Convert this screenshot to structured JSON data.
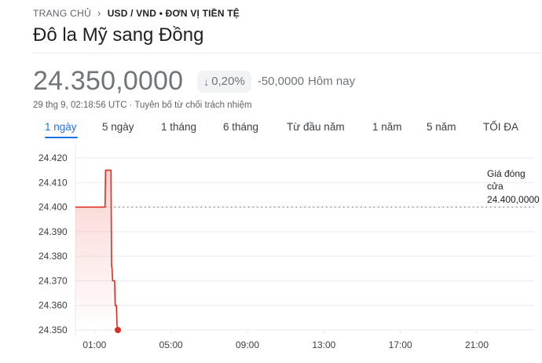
{
  "breadcrumb": {
    "home": "TRANG CHỦ",
    "separator": "›",
    "current": "USD / VND • ĐƠN VỊ TIỀN TỆ"
  },
  "title": "Đô la Mỹ sang Đồng",
  "quote": {
    "price": "24.350,0000",
    "change_arrow": "↓",
    "change_percent": "0,20%",
    "change_abs": "-50,0000",
    "change_period": "Hôm nay",
    "timestamp": "29 thg 9, 02:18:56 UTC",
    "separator": "·",
    "disclaimer": "Tuyên bố từ chối trách nhiệm"
  },
  "tabs": [
    {
      "label": "1 ngày",
      "active": true
    },
    {
      "label": "5 ngày",
      "active": false
    },
    {
      "label": "1 tháng",
      "active": false
    },
    {
      "label": "6 tháng",
      "active": false
    },
    {
      "label": "Từ đầu năm",
      "active": false
    },
    {
      "label": "1 năm",
      "active": false
    },
    {
      "label": "5 năm",
      "active": false
    },
    {
      "label": "TỐI ĐA",
      "active": false
    }
  ],
  "chart_data": {
    "type": "area",
    "y_ticks": [
      "24.420",
      "24.410",
      "24.400",
      "24.390",
      "24.380",
      "24.370",
      "24.360",
      "24.350"
    ],
    "ylim": [
      24350,
      24420
    ],
    "x_ticks": [
      "01:00",
      "05:00",
      "09:00",
      "13:00",
      "17:00",
      "21:00"
    ],
    "x_tick_hours": [
      1,
      5,
      9,
      13,
      17,
      21
    ],
    "xlim_hours": [
      0,
      24
    ],
    "previous_close": {
      "label_lines": [
        "Giá đóng",
        "cửa"
      ],
      "value_label": "24.400,0000",
      "value": 24400
    },
    "series": [
      {
        "x_hours": [
          0,
          1.55,
          1.58,
          1.86,
          1.89,
          1.92,
          1.95,
          2.05,
          2.08,
          2.14,
          2.18,
          2.22
        ],
        "values": [
          24400,
          24400,
          24415,
          24415,
          24376,
          24375,
          24370,
          24370,
          24360,
          24360,
          24352,
          24350
        ]
      }
    ],
    "last_point": {
      "x_hours": 2.22,
      "value": 24350
    },
    "colors": {
      "line": "#d93025",
      "area_top": "#f6aea9",
      "grid": "#e8eaed",
      "dotted": "#5f6368",
      "axis_text": "#3c4043"
    }
  }
}
